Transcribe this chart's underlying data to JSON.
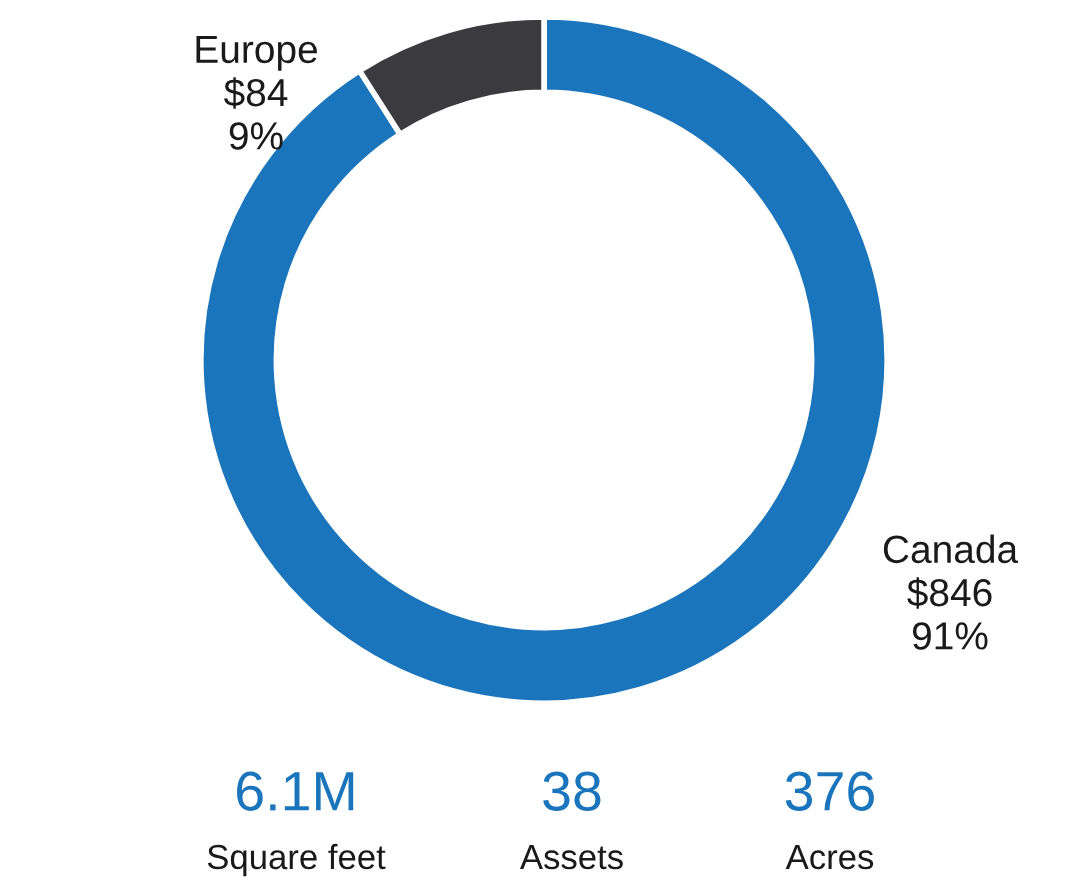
{
  "chart_data": {
    "type": "donut",
    "categories": [
      "Canada",
      "Europe"
    ],
    "values": [
      846,
      84
    ],
    "value_labels": [
      "$846\n91%",
      "$84\n9%"
    ],
    "colors": [
      "#1b75bc",
      "#3a3a3f"
    ],
    "annotations": [
      "6.1M",
      "Square feet",
      "38",
      "Assets",
      "376",
      "Acres"
    ]
  }
}
